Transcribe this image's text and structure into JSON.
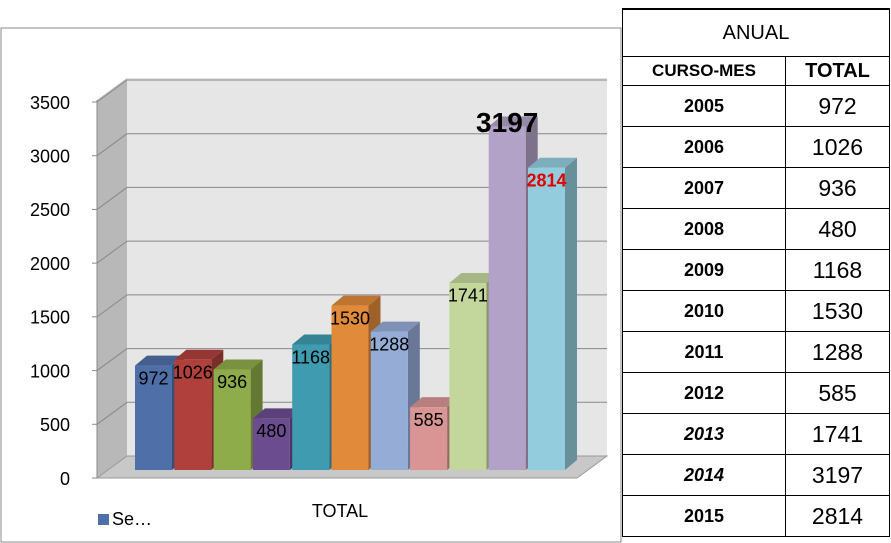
{
  "chart_data": {
    "type": "bar",
    "xlabel": "TOTAL",
    "categories": [
      null,
      null,
      null,
      null,
      null,
      null,
      null,
      null,
      null,
      null,
      null
    ],
    "series": [
      {
        "name": "Se…",
        "color": "#4f6fa8",
        "colors": [
          "#4f6fa8",
          "#b0403c",
          "#8fac4a",
          "#6b4c8e",
          "#3e9bb0",
          "#e08a3a",
          "#95acd6",
          "#d99594",
          "#c3d69b",
          "#b2a2c7",
          "#93cddd"
        ],
        "values": [
          972,
          1026,
          936,
          480,
          1168,
          1530,
          1288,
          585,
          1741,
          3197,
          2814
        ]
      }
    ],
    "ylim": [
      0,
      3500
    ],
    "yticks": [
      0,
      500,
      1000,
      1500,
      2000,
      2500,
      3000,
      3500
    ],
    "grid": true
  },
  "table": {
    "title": "ANUAL",
    "header": [
      "CURSO-MES",
      "TOTAL"
    ],
    "rows": [
      [
        "2005",
        "972"
      ],
      [
        "2006",
        "1026"
      ],
      [
        "2007",
        "936"
      ],
      [
        "2008",
        "480"
      ],
      [
        "2009",
        "1168"
      ],
      [
        "2010",
        "1530"
      ],
      [
        "2011",
        "1288"
      ],
      [
        "2012",
        "585"
      ],
      [
        "2013",
        "1741"
      ],
      [
        "2014",
        "3197"
      ],
      [
        "2015",
        "2814"
      ]
    ]
  }
}
